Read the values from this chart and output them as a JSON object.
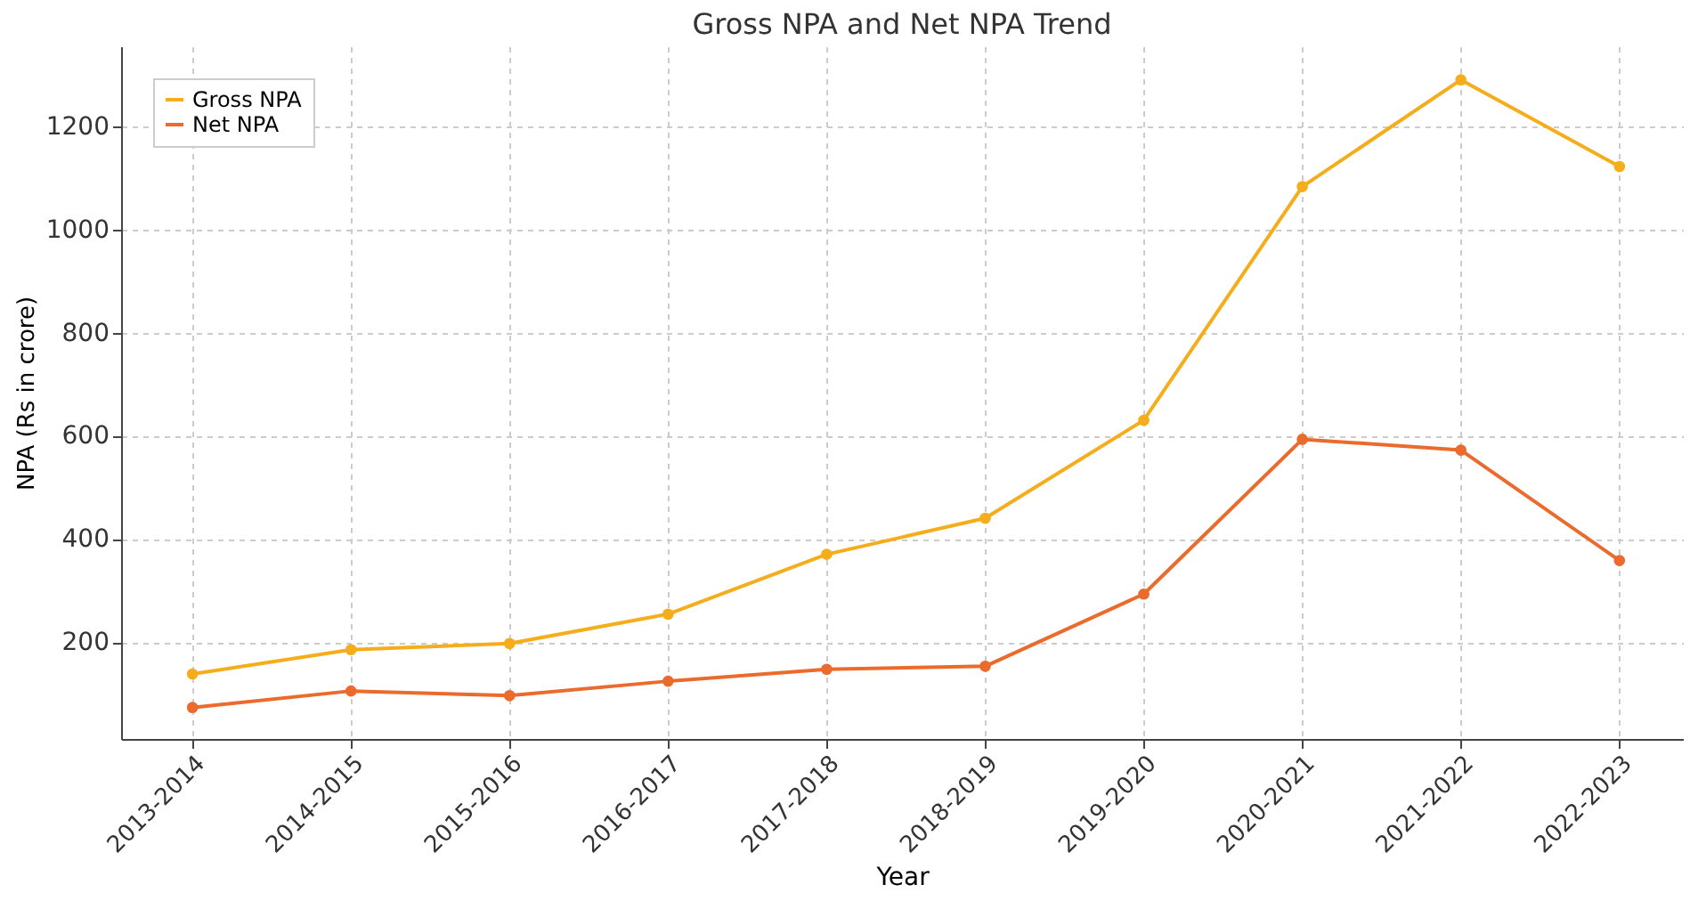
{
  "chart_data": {
    "type": "line",
    "title": "Gross NPA and Net NPA Trend",
    "xlabel": "Year",
    "ylabel": "NPA (Rs in crore)",
    "categories": [
      "2013-2014",
      "2014-2015",
      "2015-2016",
      "2016-2017",
      "2017-2018",
      "2018-2019",
      "2019-2020",
      "2020-2021",
      "2021-2022",
      "2022-2023"
    ],
    "series": [
      {
        "name": "Gross NPA",
        "color": "#f5ad1c",
        "values": [
          138,
          185,
          197,
          254,
          370,
          440,
          630,
          1083,
          1290,
          1122
        ]
      },
      {
        "name": "Net NPA",
        "color": "#ea6b2c",
        "values": [
          73,
          105,
          96,
          124,
          147,
          153,
          293,
          593,
          572,
          358
        ]
      }
    ],
    "ylim": [
      12,
      1355
    ],
    "yticks": [
      200,
      400,
      600,
      800,
      1000,
      1200
    ],
    "grid": true,
    "legend": "top left",
    "marker": "circle",
    "line_style": "solid"
  }
}
